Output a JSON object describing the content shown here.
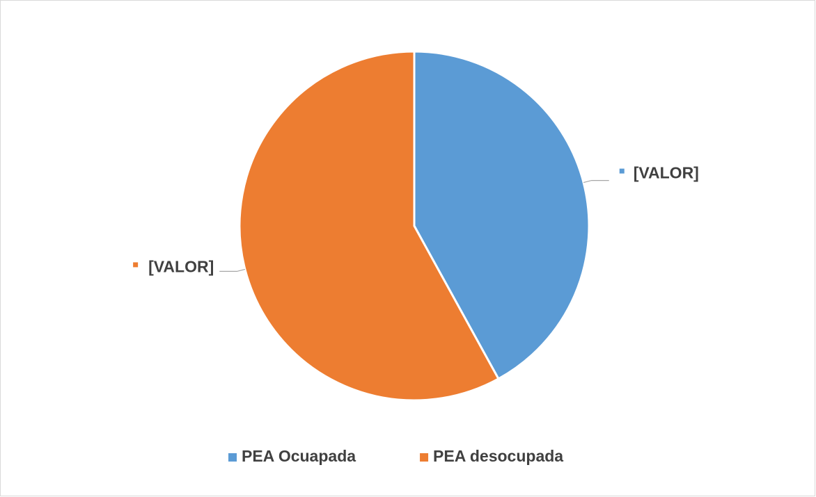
{
  "chart_data": {
    "type": "pie",
    "categories": [
      "PEA Ocuapada",
      "PEA desocupada"
    ],
    "values": [
      42,
      58
    ],
    "value_labels": [
      "[VALOR]",
      "[VALOR]"
    ],
    "colors": [
      "#5b9bd5",
      "#ed7d31"
    ],
    "legend": "bottom"
  }
}
